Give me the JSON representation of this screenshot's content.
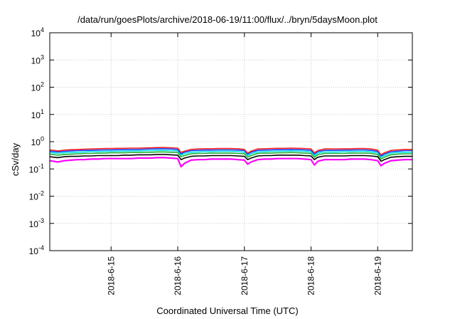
{
  "chart_data": {
    "type": "line",
    "title": "/data/run/goesPlots/archive/2018-06-19/11:00/flux/../bryn/5daysMoon.plot",
    "xlabel": "Coordinated Universal Time (UTC)",
    "ylabel": "cSv/day",
    "y_scale": "log",
    "ylim": [
      0.0001,
      10000
    ],
    "xlim": [
      14.08,
      19.52
    ],
    "x_unit": "day of 2018-06",
    "x_ticks": [
      {
        "x": 15,
        "label": "2018-6-15"
      },
      {
        "x": 16,
        "label": "2018-6-16"
      },
      {
        "x": 17,
        "label": "2018-6-17"
      },
      {
        "x": 18,
        "label": "2018-6-18"
      },
      {
        "x": 19,
        "label": "2018-6-19"
      }
    ],
    "y_ticks": [
      {
        "v": 0.0001,
        "base": "10",
        "exp": "-4"
      },
      {
        "v": 0.001,
        "base": "10",
        "exp": "-3"
      },
      {
        "v": 0.01,
        "base": "10",
        "exp": "-2"
      },
      {
        "v": 0.1,
        "base": "10",
        "exp": "-1"
      },
      {
        "v": 1,
        "base": "10",
        "exp": "0"
      },
      {
        "v": 10,
        "base": "10",
        "exp": "1"
      },
      {
        "v": 100,
        "base": "10",
        "exp": "2"
      },
      {
        "v": 1000,
        "base": "10",
        "exp": "3"
      },
      {
        "v": 10000,
        "base": "10",
        "exp": "4"
      }
    ],
    "grid": true,
    "legend": "none",
    "x": [
      14.08,
      14.2,
      14.3,
      14.4,
      14.5,
      14.6,
      14.7,
      14.8,
      14.9,
      15.0,
      15.1,
      15.2,
      15.3,
      15.4,
      15.5,
      15.6,
      15.7,
      15.8,
      15.9,
      16.0,
      16.05,
      16.1,
      16.2,
      16.3,
      16.4,
      16.5,
      16.6,
      16.7,
      16.8,
      16.9,
      17.0,
      17.05,
      17.1,
      17.2,
      17.3,
      17.4,
      17.5,
      17.6,
      17.7,
      17.8,
      17.9,
      18.0,
      18.05,
      18.1,
      18.2,
      18.3,
      18.4,
      18.5,
      18.6,
      18.7,
      18.8,
      18.9,
      19.0,
      19.05,
      19.1,
      19.2,
      19.3,
      19.4,
      19.52
    ],
    "series": [
      {
        "color": "#ff00ff",
        "values": [
          0.2,
          0.18,
          0.2,
          0.21,
          0.22,
          0.22,
          0.23,
          0.23,
          0.24,
          0.24,
          0.24,
          0.24,
          0.24,
          0.25,
          0.25,
          0.25,
          0.26,
          0.26,
          0.25,
          0.24,
          0.12,
          0.16,
          0.21,
          0.22,
          0.22,
          0.23,
          0.23,
          0.23,
          0.23,
          0.22,
          0.21,
          0.15,
          0.18,
          0.22,
          0.23,
          0.23,
          0.24,
          0.24,
          0.24,
          0.24,
          0.23,
          0.22,
          0.14,
          0.19,
          0.22,
          0.22,
          0.22,
          0.22,
          0.23,
          0.23,
          0.23,
          0.22,
          0.2,
          0.13,
          0.16,
          0.2,
          0.21,
          0.22,
          0.22
        ]
      },
      {
        "color": "#000000",
        "values": [
          0.28,
          0.26,
          0.28,
          0.29,
          0.29,
          0.3,
          0.3,
          0.31,
          0.31,
          0.31,
          0.31,
          0.32,
          0.32,
          0.33,
          0.33,
          0.33,
          0.34,
          0.34,
          0.33,
          0.32,
          0.22,
          0.25,
          0.29,
          0.3,
          0.3,
          0.31,
          0.31,
          0.31,
          0.31,
          0.3,
          0.29,
          0.22,
          0.25,
          0.3,
          0.31,
          0.31,
          0.32,
          0.32,
          0.32,
          0.32,
          0.31,
          0.3,
          0.22,
          0.27,
          0.3,
          0.3,
          0.3,
          0.3,
          0.31,
          0.31,
          0.31,
          0.3,
          0.28,
          0.19,
          0.22,
          0.27,
          0.28,
          0.29,
          0.29
        ]
      },
      {
        "color": "#20b030",
        "values": [
          0.35,
          0.32,
          0.34,
          0.35,
          0.36,
          0.37,
          0.37,
          0.38,
          0.38,
          0.39,
          0.39,
          0.39,
          0.4,
          0.4,
          0.41,
          0.41,
          0.42,
          0.42,
          0.41,
          0.4,
          0.28,
          0.31,
          0.36,
          0.37,
          0.37,
          0.38,
          0.38,
          0.38,
          0.38,
          0.37,
          0.36,
          0.27,
          0.31,
          0.37,
          0.38,
          0.38,
          0.39,
          0.39,
          0.4,
          0.39,
          0.38,
          0.37,
          0.27,
          0.33,
          0.37,
          0.37,
          0.37,
          0.37,
          0.38,
          0.38,
          0.38,
          0.37,
          0.34,
          0.23,
          0.27,
          0.33,
          0.35,
          0.36,
          0.36
        ]
      },
      {
        "color": "#00e5e5",
        "values": [
          0.4,
          0.37,
          0.39,
          0.4,
          0.41,
          0.42,
          0.43,
          0.43,
          0.44,
          0.44,
          0.45,
          0.45,
          0.46,
          0.46,
          0.47,
          0.47,
          0.48,
          0.48,
          0.47,
          0.46,
          0.32,
          0.36,
          0.41,
          0.42,
          0.43,
          0.43,
          0.44,
          0.44,
          0.44,
          0.43,
          0.41,
          0.31,
          0.36,
          0.42,
          0.43,
          0.44,
          0.45,
          0.45,
          0.46,
          0.45,
          0.44,
          0.42,
          0.31,
          0.38,
          0.42,
          0.42,
          0.42,
          0.43,
          0.43,
          0.44,
          0.44,
          0.42,
          0.39,
          0.27,
          0.31,
          0.38,
          0.4,
          0.41,
          0.41
        ]
      },
      {
        "color": "#1040ff",
        "values": [
          0.45,
          0.42,
          0.44,
          0.46,
          0.47,
          0.48,
          0.48,
          0.49,
          0.5,
          0.5,
          0.51,
          0.51,
          0.52,
          0.52,
          0.53,
          0.54,
          0.55,
          0.55,
          0.54,
          0.52,
          0.36,
          0.41,
          0.47,
          0.48,
          0.49,
          0.49,
          0.5,
          0.5,
          0.5,
          0.49,
          0.47,
          0.35,
          0.41,
          0.48,
          0.49,
          0.5,
          0.51,
          0.51,
          0.52,
          0.51,
          0.5,
          0.48,
          0.35,
          0.43,
          0.48,
          0.48,
          0.48,
          0.49,
          0.49,
          0.5,
          0.5,
          0.48,
          0.44,
          0.3,
          0.35,
          0.43,
          0.45,
          0.47,
          0.47
        ]
      },
      {
        "color": "#ff2020",
        "values": [
          0.5,
          0.46,
          0.49,
          0.51,
          0.52,
          0.53,
          0.54,
          0.55,
          0.56,
          0.56,
          0.57,
          0.57,
          0.58,
          0.58,
          0.59,
          0.6,
          0.61,
          0.61,
          0.6,
          0.58,
          0.4,
          0.45,
          0.52,
          0.54,
          0.55,
          0.55,
          0.56,
          0.56,
          0.56,
          0.55,
          0.52,
          0.38,
          0.45,
          0.54,
          0.55,
          0.56,
          0.57,
          0.57,
          0.58,
          0.57,
          0.56,
          0.54,
          0.39,
          0.47,
          0.54,
          0.54,
          0.54,
          0.55,
          0.55,
          0.56,
          0.56,
          0.54,
          0.49,
          0.33,
          0.39,
          0.48,
          0.5,
          0.52,
          0.52
        ]
      }
    ]
  }
}
